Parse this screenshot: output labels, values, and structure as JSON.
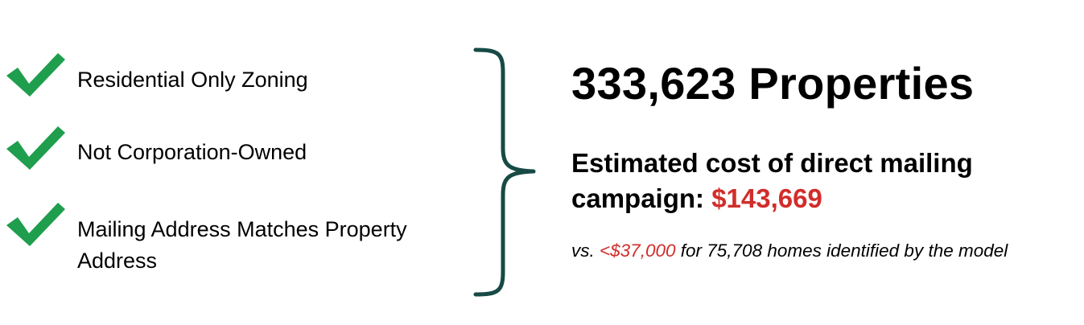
{
  "criteria": [
    {
      "icon": "check-icon",
      "label_lines": [
        "Residential Only Zoning"
      ]
    },
    {
      "icon": "check-icon",
      "label_lines": [
        "Not Corporation-Owned"
      ]
    },
    {
      "icon": "check-icon",
      "label_lines": [
        "Mailing Address Matches Property",
        "Address"
      ]
    }
  ],
  "brace_icon": "right-curly-brace-icon",
  "headline": "333,623 Properties",
  "cost": {
    "line1": "Estimated cost of direct mailing",
    "line2_prefix": "campaign: ",
    "amount": "$143,669"
  },
  "comparison": {
    "prefix": "vs. ",
    "amount": "<$37,000",
    "suffix": " for 75,708 homes identified by the model"
  },
  "colors": {
    "check": "#1f9e4d",
    "brace": "#174a45",
    "highlight": "#d12d2a",
    "text": "#000000"
  }
}
